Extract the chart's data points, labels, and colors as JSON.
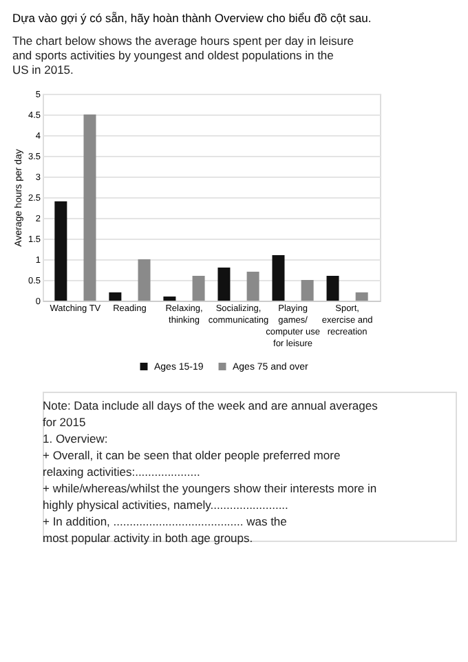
{
  "chart_data": {
    "type": "bar",
    "title": "Dựa vào gợi ý có sẵn, hãy hoàn thành Overview cho biểu đồ cột sau.",
    "subtitle": "The chart below shows the average hours spent per day in leisure and sports activities by youngest and oldest populations in the US in 2015.",
    "ylabel": "Average hours per day",
    "categories": [
      "Watching TV",
      "Reading",
      "Relaxing, thinking",
      "Socializing, communicating",
      "Playing games/ computer use for leisure",
      "Sport, exercise and recreation"
    ],
    "series": [
      {
        "name": "Ages 15-19",
        "color": "#111111",
        "values": [
          2.4,
          0.2,
          0.1,
          0.8,
          1.1,
          0.6
        ]
      },
      {
        "name": "Ages 75 and over",
        "color": "#8a8a8a",
        "values": [
          4.5,
          1.0,
          0.6,
          0.7,
          0.5,
          0.2
        ]
      }
    ],
    "ylim": [
      0,
      5
    ],
    "yticks": [
      0,
      0.5,
      1,
      1.5,
      2,
      2.5,
      3,
      3.5,
      4,
      4.5,
      5
    ],
    "grid": "y",
    "legend": "bottom",
    "annotations": [
      "Note: Data include all days of the week and are annual averages for 2015",
      "1. Overview:",
      "+ Overall, it can be seen that older people preferred more relaxing activities:....................",
      "+ while/whereas/whilst the youngers show their interests more in highly physical activities, namely........................",
      "+ In addition, ........................................ was the most popular activity in both age groups."
    ]
  }
}
